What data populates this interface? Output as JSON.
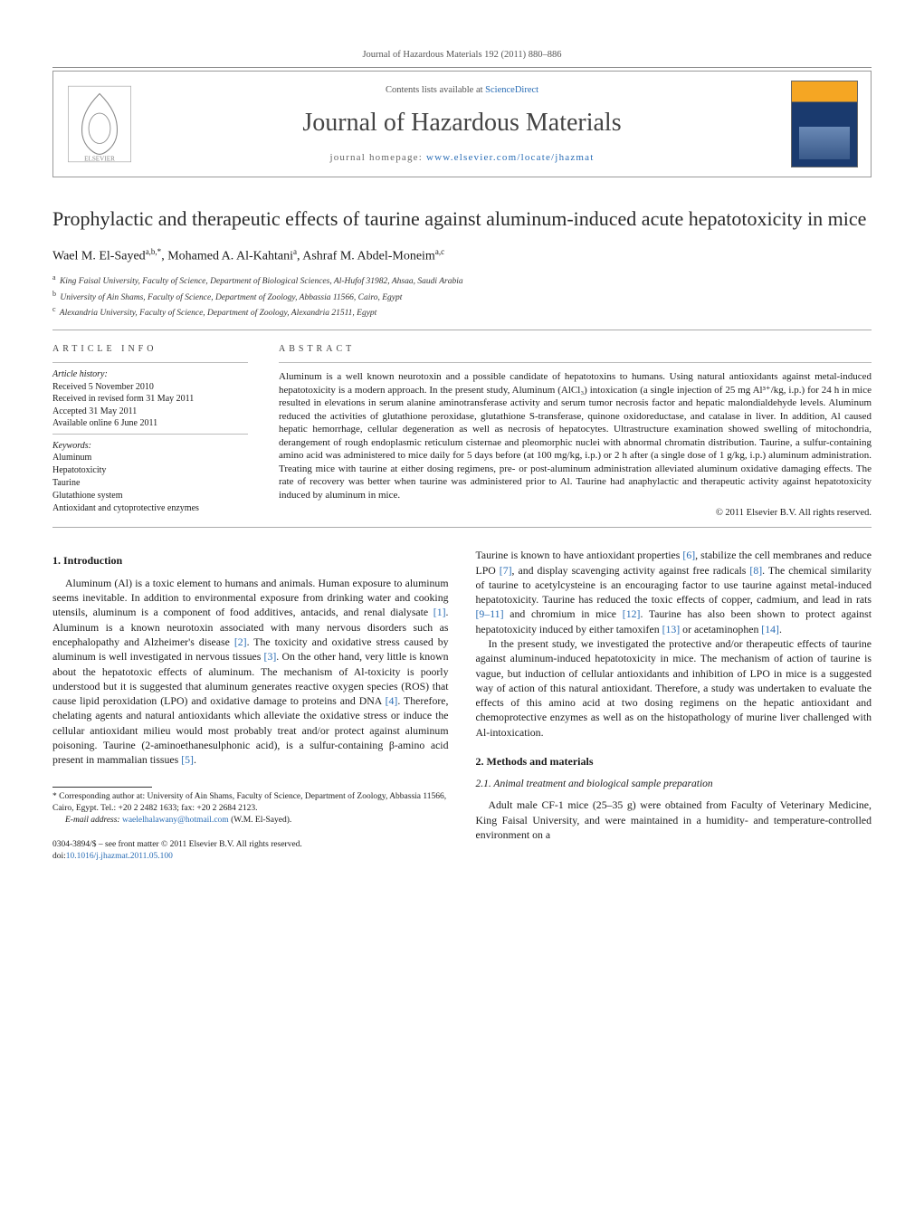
{
  "top_citation": "Journal of Hazardous Materials 192 (2011) 880–886",
  "header": {
    "contents_prefix": "Contents lists available at ",
    "contents_link": "ScienceDirect",
    "journal_name": "Journal of Hazardous Materials",
    "homepage_prefix": "journal homepage: ",
    "homepage_link": "www.elsevier.com/locate/jhazmat"
  },
  "article": {
    "title": "Prophylactic and therapeutic effects of taurine against aluminum-induced acute hepatotoxicity in mice",
    "authors_html": "Wael M. El-Sayed<sup>a,b,*</sup>, Mohamed A. Al-Kahtani<sup>a</sup>, Ashraf M. Abdel-Moneim<sup>a,c</sup>",
    "affiliations": [
      {
        "sup": "a",
        "text": "King Faisal University, Faculty of Science, Department of Biological Sciences, Al-Hufof 31982, Ahsaa, Saudi Arabia"
      },
      {
        "sup": "b",
        "text": "University of Ain Shams, Faculty of Science, Department of Zoology, Abbassia 11566, Cairo, Egypt"
      },
      {
        "sup": "c",
        "text": "Alexandria University, Faculty of Science, Department of Zoology, Alexandria 21511, Egypt"
      }
    ]
  },
  "info": {
    "heading": "article info",
    "history_label": "Article history:",
    "history": [
      "Received 5 November 2010",
      "Received in revised form 31 May 2011",
      "Accepted 31 May 2011",
      "Available online 6 June 2011"
    ],
    "keywords_label": "Keywords:",
    "keywords": [
      "Aluminum",
      "Hepatotoxicity",
      "Taurine",
      "Glutathione system",
      "Antioxidant and cytoprotective enzymes"
    ]
  },
  "abstract": {
    "heading": "abstract",
    "text": "Aluminum is a well known neurotoxin and a possible candidate of hepatotoxins to humans. Using natural antioxidants against metal-induced hepatotoxicity is a modern approach. In the present study, Aluminum (AlCl₃) intoxication (a single injection of 25 mg Al³⁺/kg, i.p.) for 24 h in mice resulted in elevations in serum alanine aminotransferase activity and serum tumor necrosis factor and hepatic malondialdehyde levels. Aluminum reduced the activities of glutathione peroxidase, glutathione S-transferase, quinone oxidoreductase, and catalase in liver. In addition, Al caused hepatic hemorrhage, cellular degeneration as well as necrosis of hepatocytes. Ultrastructure examination showed swelling of mitochondria, derangement of rough endoplasmic reticulum cisternae and pleomorphic nuclei with abnormal chromatin distribution. Taurine, a sulfur-containing amino acid was administered to mice daily for 5 days before (at 100 mg/kg, i.p.) or 2 h after (a single dose of 1 g/kg, i.p.) aluminum administration. Treating mice with taurine at either dosing regimens, pre- or post-aluminum administration alleviated aluminum oxidative damaging effects. The rate of recovery was better when taurine was administered prior to Al. Taurine had anaphylactic and therapeutic activity against hepatotoxicity induced by aluminum in mice.",
    "copyright": "© 2011 Elsevier B.V. All rights reserved."
  },
  "body": {
    "sec1_heading": "1.  Introduction",
    "col1_p1": "Aluminum (Al) is a toxic element to humans and animals. Human exposure to aluminum seems inevitable. In addition to environmental exposure from drinking water and cooking utensils, aluminum is a component of food additives, antacids, and renal dialysate [1]. Aluminum is a known neurotoxin associated with many nervous disorders such as encephalopathy and Alzheimer's disease [2]. The toxicity and oxidative stress caused by aluminum is well investigated in nervous tissues [3]. On the other hand, very little is known about the hepatotoxic effects of aluminum. The mechanism of Al-toxicity is poorly understood but it is suggested that aluminum generates reactive oxygen species (ROS) that cause lipid peroxidation (LPO) and oxidative damage to proteins and DNA [4]. Therefore, chelating agents and natural antioxidants which alleviate the oxidative stress or induce the cellular antioxidant milieu would most probably treat and/or protect against aluminum poisoning. Taurine (2-aminoethanesulphonic acid), is a sulfur-containing β-amino acid present in mammalian tissues [5].",
    "col2_p1": "Taurine is known to have antioxidant properties [6], stabilize the cell membranes and reduce LPO [7], and display scavenging activity against free radicals [8]. The chemical similarity of taurine to acetylcysteine is an encouraging factor to use taurine against metal-induced hepatotoxicity. Taurine has reduced the toxic effects of copper, cadmium, and lead in rats [9–11] and chromium in mice [12]. Taurine has also been shown to protect against hepatotoxicity induced by either tamoxifen [13] or acetaminophen [14].",
    "col2_p2": "In the present study, we investigated the protective and/or therapeutic effects of taurine against aluminum-induced hepatotoxicity in mice. The mechanism of action of taurine is vague, but induction of cellular antioxidants and inhibition of LPO in mice is a suggested way of action of this natural antioxidant. Therefore, a study was undertaken to evaluate the effects of this amino acid at two dosing regimens on the hepatic antioxidant and chemoprotective enzymes as well as on the histopathology of murine liver challenged with Al-intoxication.",
    "sec2_heading": "2.  Methods and materials",
    "sec2_1_heading": "2.1.  Animal treatment and biological sample preparation",
    "col2_p3": "Adult male CF-1 mice (25–35 g) were obtained from Faculty of Veterinary Medicine, King Faisal University, and were maintained in a humidity- and temperature-controlled environment on a"
  },
  "footnote": {
    "corresponding": "* Corresponding author at: University of Ain Shams, Faculty of Science, Department of Zoology, Abbassia 11566, Cairo, Egypt. Tel.: +20 2 2482 1633; fax: +20 2 2684 2123.",
    "email_label": "E-mail address: ",
    "email": "waelelhalawany@hotmail.com",
    "email_suffix": " (W.M. El-Sayed)."
  },
  "bottom": {
    "line1": "0304-3894/$ – see front matter © 2011 Elsevier B.V. All rights reserved.",
    "doi_prefix": "doi:",
    "doi": "10.1016/j.jhazmat.2011.05.100"
  },
  "colors": {
    "link": "#2a6db5",
    "text": "#1a1a1a",
    "rule": "#aaaaaa"
  }
}
